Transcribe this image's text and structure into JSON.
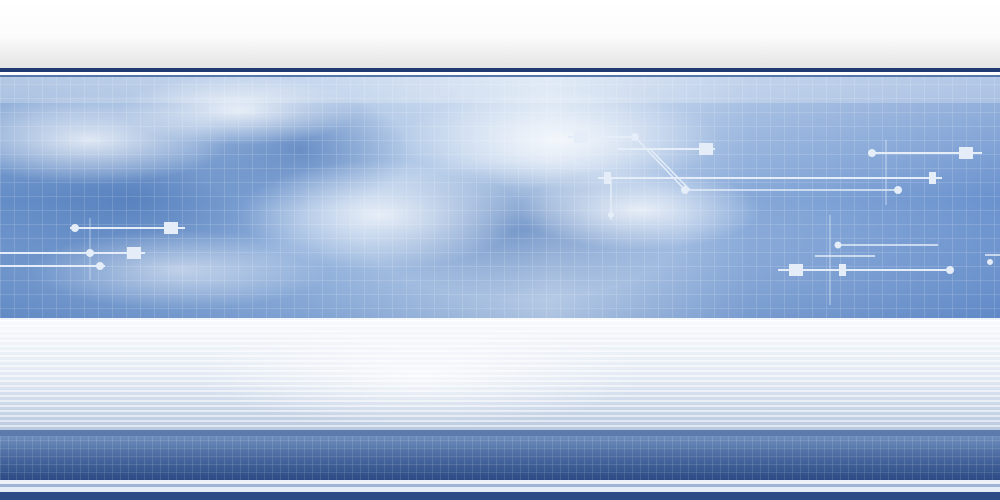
{
  "palette": {
    "top_fade_light": "#ffffff",
    "top_fade_dark": "#e6e6e6",
    "navy_rule": "#1f3a73",
    "sky_dark": "#4f7cc0",
    "sky_mid": "#8fb0dc",
    "sky_light": "#dfe9f5",
    "cloud": "#eef3fa",
    "circuit_line": "#dde8f6",
    "stripe_light": "#f2f5fa",
    "stripe_mid": "#c9d5e6",
    "bottom_band": "#3d5e96",
    "bottom_deep": "#1f3a73"
  }
}
